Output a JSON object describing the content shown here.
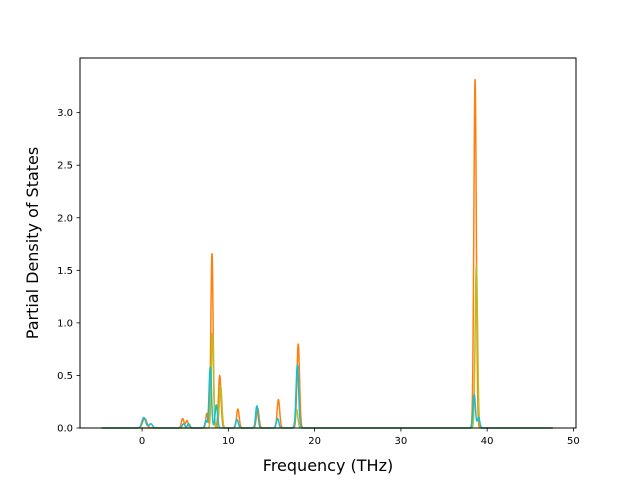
{
  "chart_data": {
    "type": "line",
    "xlabel": "Frequency (THz)",
    "ylabel": "Partial Density of States",
    "xlim": [
      -7.2,
      50.3
    ],
    "ylim": [
      0,
      3.52
    ],
    "xticks": [
      0,
      10,
      20,
      30,
      40,
      50
    ],
    "yticks": [
      0.0,
      0.5,
      1.0,
      1.5,
      2.0,
      2.5,
      3.0
    ],
    "xtick_labels": [
      "0",
      "10",
      "20",
      "30",
      "40",
      "50"
    ],
    "ytick_labels": [
      "0.0",
      "0.5",
      "1.0",
      "1.5",
      "2.0",
      "2.5",
      "3.0"
    ],
    "x_range": [
      -4.7,
      47.6
    ],
    "grid": false,
    "legend": "none",
    "series": [
      {
        "color": "#ff7f0e",
        "peaks": [
          {
            "x": 0.3,
            "y": 0.09,
            "w": 0.25
          },
          {
            "x": 4.7,
            "y": 0.09,
            "w": 0.15
          },
          {
            "x": 5.2,
            "y": 0.07,
            "w": 0.15
          },
          {
            "x": 7.5,
            "y": 0.14,
            "w": 0.12
          },
          {
            "x": 8.1,
            "y": 1.66,
            "w": 0.13
          },
          {
            "x": 9.0,
            "y": 0.5,
            "w": 0.15
          },
          {
            "x": 11.1,
            "y": 0.18,
            "w": 0.15
          },
          {
            "x": 13.4,
            "y": 0.19,
            "w": 0.15
          },
          {
            "x": 15.8,
            "y": 0.27,
            "w": 0.15
          },
          {
            "x": 18.1,
            "y": 0.8,
            "w": 0.15
          },
          {
            "x": 38.6,
            "y": 3.32,
            "w": 0.14
          }
        ]
      },
      {
        "color": "#bcbd22",
        "peaks": [
          {
            "x": 8.15,
            "y": 0.9,
            "w": 0.13
          },
          {
            "x": 9.1,
            "y": 0.4,
            "w": 0.15
          },
          {
            "x": 17.9,
            "y": 0.18,
            "w": 0.15
          },
          {
            "x": 38.75,
            "y": 1.55,
            "w": 0.14
          }
        ]
      },
      {
        "color": "#17becf",
        "peaks": [
          {
            "x": 0.2,
            "y": 0.1,
            "w": 0.22
          },
          {
            "x": 1.0,
            "y": 0.04,
            "w": 0.2
          },
          {
            "x": 4.8,
            "y": 0.04,
            "w": 0.15
          },
          {
            "x": 5.4,
            "y": 0.04,
            "w": 0.15
          },
          {
            "x": 7.4,
            "y": 0.07,
            "w": 0.12
          },
          {
            "x": 7.9,
            "y": 0.58,
            "w": 0.14
          },
          {
            "x": 8.6,
            "y": 0.22,
            "w": 0.14
          },
          {
            "x": 11.0,
            "y": 0.08,
            "w": 0.15
          },
          {
            "x": 13.3,
            "y": 0.21,
            "w": 0.14
          },
          {
            "x": 15.7,
            "y": 0.09,
            "w": 0.15
          },
          {
            "x": 18.0,
            "y": 0.6,
            "w": 0.15
          },
          {
            "x": 38.5,
            "y": 0.32,
            "w": 0.14
          },
          {
            "x": 39.0,
            "y": 0.1,
            "w": 0.14
          }
        ]
      }
    ]
  }
}
